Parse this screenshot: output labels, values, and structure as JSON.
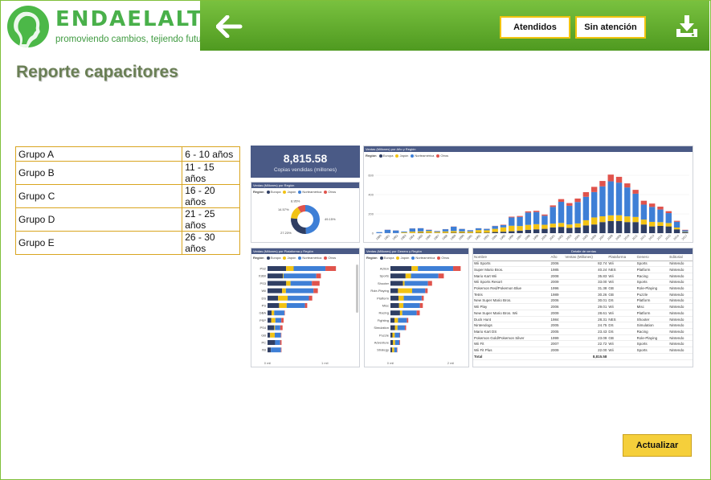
{
  "header": {
    "logo_name": "ENDAELALTO",
    "logo_slogan": "promoviendo cambios, tejiendo futuros",
    "atendidos_label": "Atendidos",
    "sin_atencion_label": "Sin atención"
  },
  "page_title": "Reporte capacitores",
  "groups": [
    {
      "name": "Grupo A",
      "range": "6  - 10 años"
    },
    {
      "name": "Grupo B",
      "range": "11 - 15 años"
    },
    {
      "name": "Grupo C",
      "range": "16 - 20 años"
    },
    {
      "name": "Grupo D",
      "range": "21 - 25 años"
    },
    {
      "name": "Grupo E",
      "range": "26 - 30 años"
    }
  ],
  "colors": {
    "europa": "#2f3e63",
    "japon": "#f2c314",
    "norteamerica": "#3e7fd6",
    "otros": "#e0534c"
  },
  "dashboard": {
    "kpi_value": "8,815.58",
    "kpi_label": "Copias vendidas (millones)",
    "legend_label": "Región",
    "legend": [
      "Europa",
      "Japón",
      "Norteamérica",
      "Otros"
    ],
    "donut_title": "Ventas (Millones) por Región",
    "year_title": "Ventas (Millones) por Año y Región",
    "platform_title": "Ventas (Millones) por Plataforma y Región",
    "genre_title": "Ventas (Millones) por Genero y Región",
    "detail_title": "Detalle de ventas",
    "platform_axis": [
      "0 mil",
      "1 mil"
    ],
    "genre_axis": [
      "0 mil",
      "2 mil"
    ],
    "detail_columns": [
      "Nombre",
      "Año",
      "Ventas (Millones)",
      "Plataforma",
      "Genero",
      "Editorial"
    ],
    "detail_rows": [
      [
        "Wii Sports",
        "2006",
        "82.74",
        "Wii",
        "Sports",
        "Nintendo"
      ],
      [
        "Super Mario Bros.",
        "1985",
        "40.24",
        "NES",
        "Platform",
        "Nintendo"
      ],
      [
        "Mario Kart Wii",
        "2008",
        "35.83",
        "Wii",
        "Racing",
        "Nintendo"
      ],
      [
        "Wii Sports Resort",
        "2009",
        "33.00",
        "Wii",
        "Sports",
        "Nintendo"
      ],
      [
        "Pokemon Red/Pokemon Blue",
        "1996",
        "31.38",
        "GB",
        "Role-Playing",
        "Nintendo"
      ],
      [
        "Tetris",
        "1989",
        "30.26",
        "GB",
        "Puzzle",
        "Nintendo"
      ],
      [
        "New Super Mario Bros.",
        "2006",
        "30.01",
        "DS",
        "Platform",
        "Nintendo"
      ],
      [
        "Wii Play",
        "2006",
        "29.01",
        "Wii",
        "Misc",
        "Nintendo"
      ],
      [
        "New Super Mario Bros. Wii",
        "2009",
        "28.61",
        "Wii",
        "Platform",
        "Nintendo"
      ],
      [
        "Duck Hunt",
        "1984",
        "28.31",
        "NES",
        "Shooter",
        "Nintendo"
      ],
      [
        "Nintendogs",
        "2005",
        "24.75",
        "DS",
        "Simulation",
        "Nintendo"
      ],
      [
        "Mario Kart DS",
        "2005",
        "23.43",
        "DS",
        "Racing",
        "Nintendo"
      ],
      [
        "Pokemon Gold/Pokemon Silver",
        "1999",
        "23.09",
        "GB",
        "Role-Playing",
        "Nintendo"
      ],
      [
        "Wii Fit",
        "2007",
        "22.72",
        "Wii",
        "Sports",
        "Nintendo"
      ],
      [
        "Wii Fit Plus",
        "2009",
        "22.00",
        "Wii",
        "Sports",
        "Nintendo"
      ]
    ],
    "detail_total_label": "Total",
    "detail_total_value": "8,815.58"
  },
  "chart_data": [
    {
      "type": "pie",
      "title": "Ventas (Millones) por Región",
      "labels": [
        "Norteamérica",
        "Europa",
        "Japón",
        "Otros"
      ],
      "values": [
        49.15,
        27.23,
        14.57,
        8.95
      ],
      "value_labels": [
        "49.15%",
        "27.23%",
        "14.57%",
        "8.95%"
      ]
    },
    {
      "type": "bar",
      "title": "Ventas (Millones) por Año y Región",
      "stacked": true,
      "categories": [
        "1980",
        "1981",
        "1982",
        "1983",
        "1984",
        "1985",
        "1986",
        "1987",
        "1988",
        "1989",
        "1990",
        "1991",
        "1992",
        "1993",
        "1994",
        "1995",
        "1996",
        "1997",
        "1998",
        "1999",
        "2000",
        "2001",
        "2002",
        "2003",
        "2004",
        "2005",
        "2006",
        "2007",
        "2008",
        "2009",
        "2010",
        "2011",
        "2012",
        "2013",
        "2014",
        "2015",
        "2016",
        "2017"
      ],
      "yticks": [
        "0",
        "200",
        "400",
        "600"
      ],
      "ylim": [
        0,
        700
      ],
      "series": [
        {
          "name": "Europa",
          "values": [
            1,
            2,
            2,
            1,
            2,
            4,
            3,
            2,
            3,
            4,
            4,
            3,
            4,
            5,
            12,
            15,
            20,
            26,
            35,
            40,
            45,
            60,
            65,
            55,
            60,
            80,
            90,
            115,
            125,
            125,
            115,
            115,
            90,
            70,
            75,
            70,
            40,
            10
          ]
        },
        {
          "name": "Japón",
          "values": [
            0,
            0,
            0,
            8,
            14,
            14,
            19,
            11,
            15,
            18,
            14,
            15,
            28,
            25,
            33,
            45,
            57,
            48,
            51,
            53,
            42,
            39,
            41,
            35,
            41,
            54,
            73,
            60,
            60,
            61,
            59,
            53,
            51,
            47,
            39,
            35,
            18,
            5
          ]
        },
        {
          "name": "Norteamérica",
          "values": [
            10,
            33,
            26,
            8,
            33,
            33,
            12,
            8,
            23,
            45,
            26,
            12,
            18,
            15,
            29,
            24,
            86,
            94,
            128,
            126,
            94,
            173,
            219,
            194,
            222,
            243,
            263,
            310,
            352,
            338,
            300,
            241,
            155,
            155,
            131,
            103,
            60,
            15
          ]
        },
        {
          "name": "Otros",
          "values": [
            0,
            1,
            1,
            0,
            1,
            1,
            2,
            1,
            1,
            2,
            1,
            1,
            1,
            1,
            2,
            4,
            8,
            10,
            12,
            13,
            12,
            16,
            28,
            28,
            36,
            48,
            54,
            56,
            70,
            60,
            42,
            40,
            40,
            35,
            30,
            20,
            10,
            5
          ]
        }
      ]
    },
    {
      "type": "bar",
      "title": "Ventas (Millones) por Plataforma y Región",
      "orientation": "horizontal",
      "stacked": true,
      "categories": [
        "PS2",
        "X360",
        "PS3",
        "Wii",
        "DS",
        "PS",
        "GBA",
        "PSP",
        "PS4",
        "GB",
        "PC",
        "XB"
      ],
      "xticks": [
        "0 mil",
        "1 mil"
      ],
      "series": [
        {
          "name": "Europa",
          "values": [
            340,
            280,
            343,
            268,
            194,
            212,
            75,
            68,
            123,
            47,
            139,
            60
          ]
        },
        {
          "name": "Japón",
          "values": [
            139,
            13,
            79,
            69,
            175,
            139,
            47,
            76,
            14,
            85,
            0,
            1
          ]
        },
        {
          "name": "Norteamérica",
          "values": [
            583,
            601,
            392,
            506,
            390,
            336,
            187,
            108,
            96,
            114,
            93,
            186
          ]
        },
        {
          "name": "Otros",
          "values": [
            193,
            85,
            141,
            80,
            61,
            41,
            8,
            43,
            43,
            8,
            25,
            9
          ]
        }
      ]
    },
    {
      "type": "bar",
      "title": "Ventas (Millones) por Genero y Región",
      "orientation": "horizontal",
      "stacked": true,
      "categories": [
        "Action",
        "Sports",
        "Shooter",
        "Role-Playing",
        "Platform",
        "Misc",
        "Racing",
        "Fighting",
        "Simulation",
        "Puzzle",
        "Adventure",
        "Strategy"
      ],
      "xticks": [
        "0 mil",
        "2 mil"
      ],
      "series": [
        {
          "name": "Europa",
          "values": [
            525,
            376,
            313,
            188,
            201,
            215,
            238,
            101,
            113,
            50,
            64,
            45
          ]
        },
        {
          "name": "Japón",
          "values": [
            159,
            135,
            38,
            352,
            130,
            107,
            56,
            87,
            63,
            57,
            52,
            49
          ]
        },
        {
          "name": "Norteamérica",
          "values": [
            877,
            684,
            582,
            327,
            447,
            410,
            359,
            220,
            183,
            123,
            105,
            68
          ]
        },
        {
          "name": "Otros",
          "values": [
            187,
            134,
            103,
            59,
            51,
            74,
            77,
            36,
            31,
            12,
            17,
            11
          ]
        }
      ]
    }
  ]
}
